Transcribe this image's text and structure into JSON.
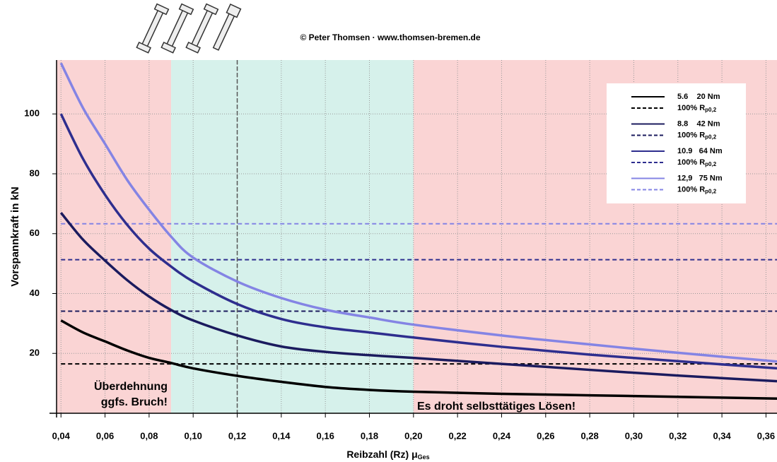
{
  "chart_data": {
    "type": "line",
    "title": "© Peter Thomsen · www.thomsen-bremen.de",
    "x_label": "Reibzahl (Rz) μ",
    "x_label_subscript": "Ges",
    "y_label": "Vorspannkraft in kN",
    "x": [
      0.04,
      0.05,
      0.06,
      0.07,
      0.08,
      0.09,
      0.1,
      0.12,
      0.14,
      0.16,
      0.18,
      0.2,
      0.24,
      0.28,
      0.32,
      0.365
    ],
    "series": [
      {
        "name": "5.6    20 Nm",
        "color": "#000000",
        "values": [
          31,
          27,
          24,
          21,
          18.5,
          16.8,
          15,
          12.5,
          10.5,
          8.8,
          7.8,
          7.2,
          6.5,
          6,
          5.5,
          4.9
        ]
      },
      {
        "name": "8.8    42 Nm",
        "color": "#1b1b5e",
        "values": [
          67,
          58,
          51,
          44.5,
          39,
          34.5,
          31,
          26,
          22.3,
          20.5,
          19.4,
          18.5,
          16.5,
          14.5,
          12.6,
          10.7
        ]
      },
      {
        "name": "10.9   64 Nm",
        "color": "#2e2e8e",
        "values": [
          100,
          85,
          73,
          63,
          55,
          49,
          44,
          36.5,
          31.5,
          28.7,
          27,
          25.3,
          22.2,
          19.6,
          17.4,
          15
        ]
      },
      {
        "name": "12,9   75 Nm",
        "color": "#8484e4",
        "values": [
          117,
          102,
          90,
          78,
          68,
          59,
          52,
          44,
          38.5,
          34.6,
          32,
          29.6,
          26,
          23,
          20.2,
          17.3
        ]
      }
    ],
    "reference_lines": [
      {
        "name": "100% R",
        "subscript": "p0,2",
        "color": "#000000",
        "value": 16.5
      },
      {
        "name": "100% R",
        "subscript": "p0,2",
        "color": "#1b1b5e",
        "value": 34.1
      },
      {
        "name": "100% R",
        "subscript": "p0,2",
        "color": "#2e2e8e",
        "value": 51.3
      },
      {
        "name": "100% R",
        "subscript": "p0,2",
        "color": "#8484e4",
        "value": 63.3
      }
    ],
    "regions": [
      {
        "from": 0.038,
        "to": 0.09,
        "color": "#fad4d4"
      },
      {
        "from": 0.09,
        "to": 0.2,
        "color": "#d6f1eb"
      },
      {
        "from": 0.2,
        "to": 0.365,
        "color": "#fad4d4"
      }
    ],
    "vline": 0.12,
    "annotations": [
      "Überdehnung",
      "ggfs. Bruch!",
      "Es droht selbsttätiges Lösen!"
    ],
    "xlim": [
      0.038,
      0.365
    ],
    "ylim": [
      0,
      118
    ],
    "xticks": [
      {
        "value": 0.04,
        "label": "0,04"
      },
      {
        "value": 0.06,
        "label": "0,06"
      },
      {
        "value": 0.08,
        "label": "0,08"
      },
      {
        "value": 0.1,
        "label": "0,10"
      },
      {
        "value": 0.12,
        "label": "0,12"
      },
      {
        "value": 0.14,
        "label": "0,14"
      },
      {
        "value": 0.16,
        "label": "0,16"
      },
      {
        "value": 0.18,
        "label": "0,18"
      },
      {
        "value": 0.2,
        "label": "0,20"
      },
      {
        "value": 0.22,
        "label": "0,22"
      },
      {
        "value": 0.24,
        "label": "0,24"
      },
      {
        "value": 0.26,
        "label": "0,26"
      },
      {
        "value": 0.28,
        "label": "0,28"
      },
      {
        "value": 0.3,
        "label": "0,30"
      },
      {
        "value": 0.32,
        "label": "0,32"
      },
      {
        "value": 0.34,
        "label": "0,34"
      },
      {
        "value": 0.36,
        "label": "0,36"
      }
    ],
    "yticks": [
      20,
      40,
      60,
      80,
      100
    ],
    "grid": true
  }
}
